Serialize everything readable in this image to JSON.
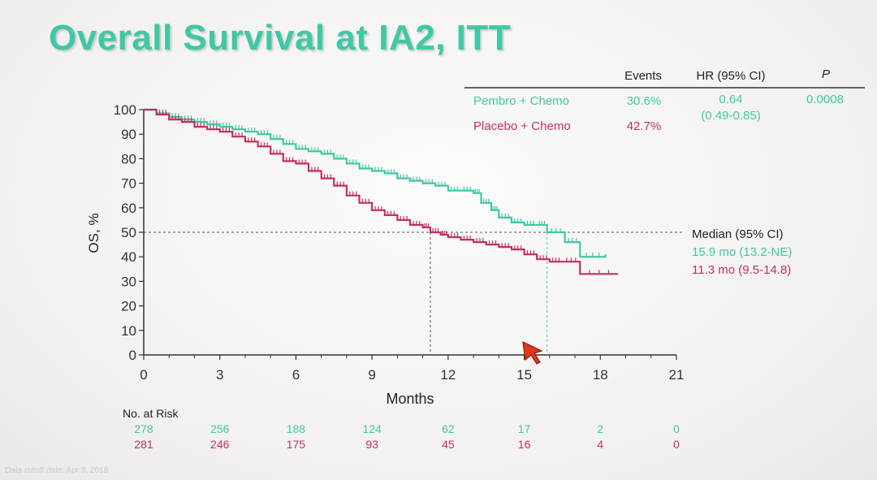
{
  "title": "Overall Survival at IA2, ITT",
  "stats_table": {
    "headers": {
      "events": "Events",
      "hr": "HR (95% CI)",
      "p": "P"
    },
    "rows": [
      {
        "arm": "Pembro + Chemo",
        "events": "30.6%",
        "hr": "0.64",
        "hr_ci": "(0.49-0.85)",
        "p": "0.0008",
        "color": "#3fc8a6"
      },
      {
        "arm": "Placebo + Chemo",
        "events": "42.7%",
        "color": "#c2305f"
      }
    ]
  },
  "median_box": {
    "heading": "Median (95% CI)",
    "pembro": "15.9 mo (13.2-NE)",
    "placebo": "11.3 mo (9.5-14.8)"
  },
  "risk_table": {
    "heading": "No. at Risk",
    "pembro": [
      "278",
      "256",
      "188",
      "124",
      "62",
      "17",
      "2",
      "0"
    ],
    "placebo": [
      "281",
      "246",
      "175",
      "93",
      "45",
      "16",
      "4",
      "0"
    ]
  },
  "footnote": "Data cutoff date: Apr 3, 2018",
  "colors": {
    "pembro": "#3fc8a6",
    "placebo": "#c2305f",
    "axis": "#333333",
    "text": "#222222"
  },
  "chart_data": {
    "type": "line",
    "title": "Overall Survival at IA2, ITT",
    "xlabel": "Months",
    "ylabel": "OS, %",
    "xlim": [
      0,
      21
    ],
    "ylim": [
      0,
      100
    ],
    "xticks": [
      "0",
      "3",
      "6",
      "9",
      "12",
      "15",
      "18",
      "21"
    ],
    "yticks": [
      "0",
      "10",
      "20",
      "30",
      "40",
      "50",
      "60",
      "70",
      "80",
      "90",
      "100"
    ],
    "median_line": 50,
    "medians": [
      15.9,
      11.3
    ],
    "grid": false,
    "legend": "top-right",
    "series": [
      {
        "name": "Pembro + Chemo",
        "color": "#3fc8a6",
        "x": [
          0,
          0.5,
          1,
          1.5,
          2,
          2.5,
          3,
          3.5,
          4,
          4.5,
          5,
          5.5,
          6,
          6.5,
          7,
          7.5,
          8,
          8.5,
          9,
          9.5,
          10,
          10.5,
          11,
          11.5,
          12,
          12.5,
          13,
          13.3,
          13.7,
          14,
          14.5,
          15,
          15.5,
          15.9,
          16.6,
          17.2,
          18.2
        ],
        "y": [
          100,
          98.5,
          97,
          96,
          95,
          94,
          93,
          92,
          91,
          90,
          88,
          86,
          84,
          83,
          82,
          80,
          78,
          76,
          75,
          74,
          72,
          71,
          70,
          69,
          67,
          67,
          66,
          62,
          59,
          56,
          54,
          53,
          53,
          50,
          46,
          40,
          41
        ]
      },
      {
        "name": "Placebo + Chemo",
        "color": "#c2305f",
        "x": [
          0,
          0.5,
          1,
          1.5,
          2,
          2.5,
          3,
          3.5,
          4,
          4.5,
          5,
          5.5,
          6,
          6.5,
          7,
          7.5,
          8,
          8.5,
          9,
          9.5,
          10,
          10.5,
          11,
          11.3,
          11.7,
          12,
          12.5,
          13,
          13.5,
          14,
          14.5,
          15,
          15.5,
          16,
          16.5,
          17.2,
          18.7
        ],
        "y": [
          100,
          98,
          96,
          95,
          93,
          92,
          91,
          89,
          87,
          85,
          82,
          79,
          78,
          75,
          72,
          69,
          65,
          62,
          59,
          57,
          55,
          53,
          52,
          50,
          49,
          48,
          47,
          46,
          45,
          44,
          43,
          41,
          39,
          38,
          38,
          33,
          33
        ]
      }
    ]
  }
}
